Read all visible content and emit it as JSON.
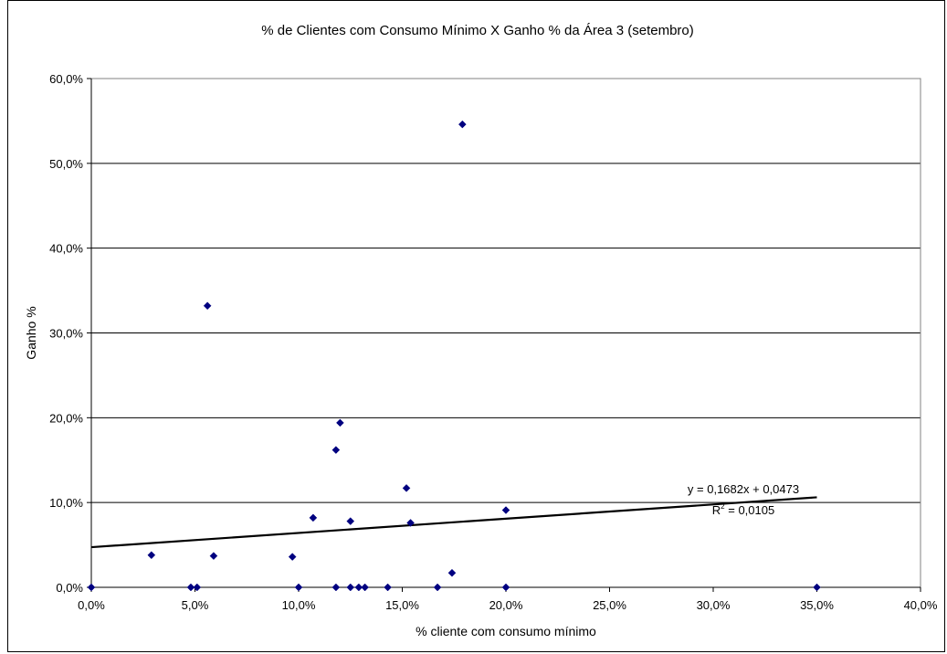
{
  "chart_data": {
    "type": "scatter",
    "title": "% de Clientes com Consumo Mínimo X Ganho % da Área 3 (setembro)",
    "xlabel": "% cliente com consumo mínimo",
    "ylabel": "Ganho %",
    "xlim": [
      0,
      0.4
    ],
    "ylim": [
      0,
      0.6
    ],
    "x_ticks": [
      0,
      0.05,
      0.1,
      0.15,
      0.2,
      0.25,
      0.3,
      0.35,
      0.4
    ],
    "y_ticks": [
      0,
      0.1,
      0.2,
      0.3,
      0.4,
      0.5,
      0.6
    ],
    "x_tick_labels": [
      "0,0%",
      "5,0%",
      "10,0%",
      "15,0%",
      "20,0%",
      "25,0%",
      "30,0%",
      "35,0%",
      "40,0%"
    ],
    "y_tick_labels": [
      "0,0%",
      "10,0%",
      "20,0%",
      "30,0%",
      "40,0%",
      "50,0%",
      "60,0%"
    ],
    "grid": "horizontal",
    "legend": "none",
    "marker_color": "#000080",
    "series": [
      {
        "points": [
          [
            0.0,
            0.0
          ],
          [
            0.029,
            0.038
          ],
          [
            0.048,
            0.0
          ],
          [
            0.051,
            0.0
          ],
          [
            0.056,
            0.332
          ],
          [
            0.059,
            0.037
          ],
          [
            0.097,
            0.036
          ],
          [
            0.1,
            0.0
          ],
          [
            0.107,
            0.082
          ],
          [
            0.118,
            0.162
          ],
          [
            0.118,
            0.0
          ],
          [
            0.12,
            0.194
          ],
          [
            0.125,
            0.078
          ],
          [
            0.125,
            0.0
          ],
          [
            0.129,
            0.0
          ],
          [
            0.132,
            0.0
          ],
          [
            0.143,
            0.0
          ],
          [
            0.152,
            0.117
          ],
          [
            0.154,
            0.076
          ],
          [
            0.167,
            0.0
          ],
          [
            0.174,
            0.017
          ],
          [
            0.179,
            0.546
          ],
          [
            0.2,
            0.091
          ],
          [
            0.2,
            0.0
          ],
          [
            0.35,
            0.0
          ]
        ]
      }
    ],
    "trendline": {
      "slope": 0.1682,
      "intercept": 0.0473,
      "x_range": [
        0,
        0.35
      ],
      "equation_label": "y = 0,1682x + 0,0473",
      "r2_label_prefix": "R",
      "r2_label_sup": "2",
      "r2_label_value": " = 0,0105"
    }
  }
}
